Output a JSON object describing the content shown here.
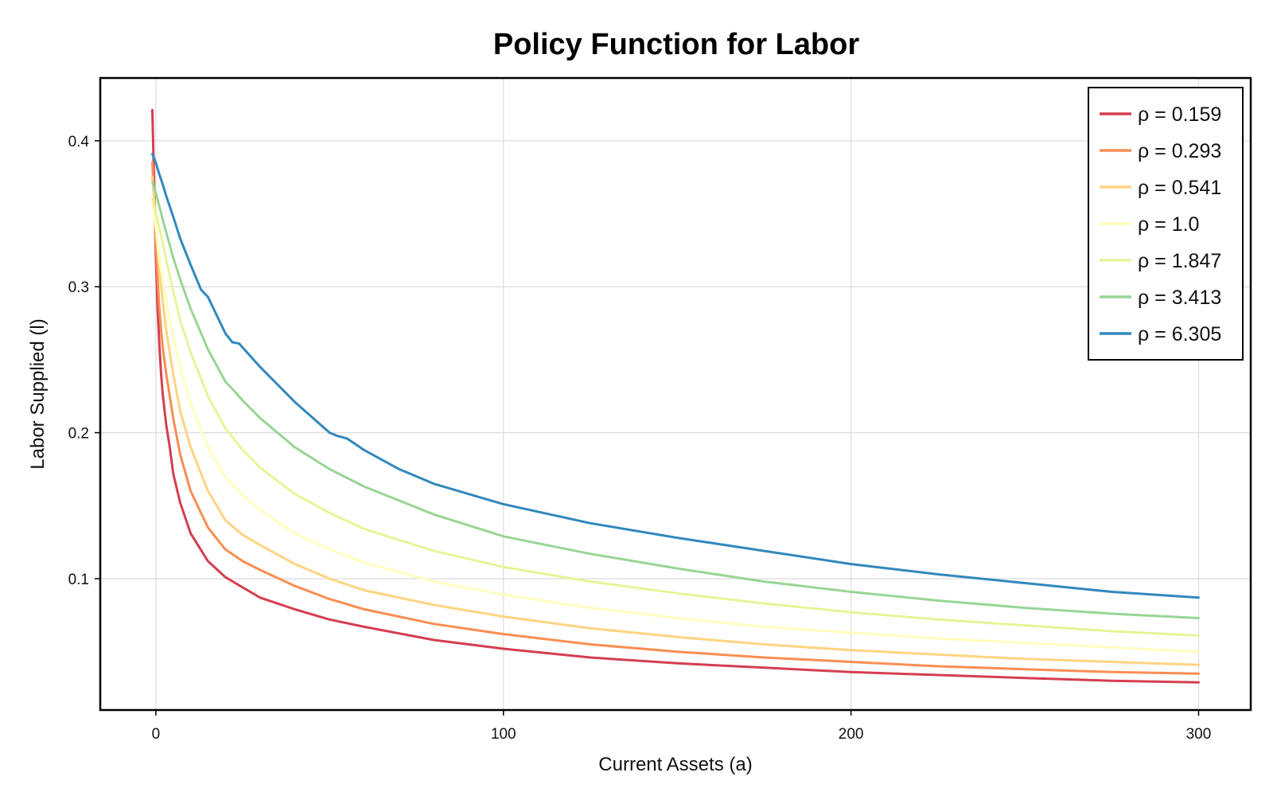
{
  "chart_data": {
    "type": "line",
    "title": "Policy Function for Labor",
    "xlabel": "Current Assets (a)",
    "ylabel": "Labor Supplied (l)",
    "xlim": [
      -16,
      315
    ],
    "ylim": [
      0.01,
      0.443
    ],
    "xticks": [
      0,
      100,
      200,
      300
    ],
    "yticks": [
      0.1,
      0.2,
      0.3,
      0.4
    ],
    "grid": true,
    "legend_position": "top-right",
    "series": [
      {
        "name": "ρ = 0.159",
        "color": "#d53e4f",
        "x": [
          -1,
          -0.5,
          0,
          0.5,
          1,
          1.5,
          2,
          3,
          4,
          5,
          7,
          10,
          15,
          20,
          25,
          30,
          40,
          50,
          60,
          80,
          100,
          125,
          150,
          175,
          200,
          225,
          250,
          275,
          300
        ],
        "y": [
          0.421,
          0.37,
          0.32,
          0.285,
          0.26,
          0.24,
          0.226,
          0.205,
          0.19,
          0.172,
          0.152,
          0.131,
          0.112,
          0.101,
          0.094,
          0.087,
          0.079,
          0.072,
          0.067,
          0.058,
          0.052,
          0.046,
          0.042,
          0.039,
          0.036,
          0.034,
          0.032,
          0.03,
          0.029
        ]
      },
      {
        "name": "ρ = 0.293",
        "color": "#f98e52",
        "x": [
          -1,
          -0.5,
          0,
          0.5,
          1,
          1.5,
          2,
          3,
          4,
          5,
          7,
          10,
          15,
          20,
          25,
          30,
          40,
          50,
          60,
          80,
          100,
          125,
          150,
          175,
          200,
          225,
          250,
          275,
          300
        ],
        "y": [
          0.385,
          0.36,
          0.33,
          0.305,
          0.285,
          0.27,
          0.258,
          0.24,
          0.225,
          0.21,
          0.185,
          0.16,
          0.135,
          0.12,
          0.112,
          0.106,
          0.095,
          0.086,
          0.079,
          0.069,
          0.062,
          0.055,
          0.05,
          0.046,
          0.043,
          0.04,
          0.038,
          0.036,
          0.035
        ]
      },
      {
        "name": "ρ = 0.541",
        "color": "#fed481",
        "x": [
          -1,
          -0.5,
          0,
          0.5,
          1,
          2,
          3,
          5,
          7,
          10,
          15,
          20,
          25,
          30,
          40,
          50,
          60,
          80,
          100,
          125,
          150,
          175,
          200,
          225,
          250,
          275,
          300
        ],
        "y": [
          0.375,
          0.36,
          0.34,
          0.325,
          0.31,
          0.29,
          0.27,
          0.24,
          0.215,
          0.19,
          0.16,
          0.14,
          0.13,
          0.123,
          0.11,
          0.1,
          0.092,
          0.082,
          0.074,
          0.066,
          0.06,
          0.055,
          0.051,
          0.048,
          0.045,
          0.043,
          0.041
        ]
      },
      {
        "name": "ρ = 1.0",
        "color": "#fffebe",
        "x": [
          -1,
          -0.5,
          0,
          1,
          2,
          3,
          5,
          7,
          10,
          15,
          20,
          25,
          30,
          40,
          50,
          60,
          80,
          100,
          125,
          150,
          175,
          200,
          225,
          250,
          275,
          300
        ],
        "y": [
          0.36,
          0.35,
          0.34,
          0.32,
          0.305,
          0.29,
          0.265,
          0.245,
          0.22,
          0.19,
          0.17,
          0.157,
          0.147,
          0.131,
          0.12,
          0.111,
          0.098,
          0.089,
          0.08,
          0.073,
          0.067,
          0.063,
          0.059,
          0.056,
          0.053,
          0.05
        ]
      },
      {
        "name": "ρ = 1.847",
        "color": "#e6f598",
        "x": [
          -1,
          -0.5,
          0,
          1,
          2,
          3,
          5,
          7,
          10,
          15,
          20,
          25,
          30,
          40,
          50,
          60,
          80,
          100,
          125,
          150,
          175,
          200,
          225,
          250,
          275,
          300
        ],
        "y": [
          0.36,
          0.355,
          0.35,
          0.34,
          0.33,
          0.318,
          0.297,
          0.277,
          0.255,
          0.225,
          0.203,
          0.188,
          0.176,
          0.158,
          0.145,
          0.134,
          0.119,
          0.108,
          0.098,
          0.09,
          0.083,
          0.077,
          0.072,
          0.068,
          0.064,
          0.061
        ]
      },
      {
        "name": "ρ = 3.413",
        "color": "#99d594",
        "x": [
          -1,
          -0.5,
          0,
          1,
          2,
          3,
          5,
          7,
          10,
          15,
          20,
          22,
          25,
          30,
          40,
          50,
          60,
          80,
          100,
          125,
          150,
          175,
          200,
          225,
          250,
          275,
          300
        ],
        "y": [
          0.372,
          0.368,
          0.364,
          0.355,
          0.346,
          0.337,
          0.32,
          0.305,
          0.285,
          0.257,
          0.235,
          0.23,
          0.222,
          0.21,
          0.19,
          0.175,
          0.163,
          0.144,
          0.129,
          0.117,
          0.107,
          0.098,
          0.091,
          0.085,
          0.08,
          0.076,
          0.073
        ]
      },
      {
        "name": "ρ = 6.305",
        "color": "#3288bd",
        "x": [
          -1,
          -0.5,
          0,
          1,
          2,
          3,
          5,
          7,
          10,
          13,
          15,
          20,
          22,
          24,
          30,
          40,
          50,
          52,
          55,
          60,
          70,
          80,
          100,
          125,
          150,
          175,
          200,
          225,
          250,
          275,
          300
        ],
        "y": [
          0.391,
          0.388,
          0.385,
          0.377,
          0.37,
          0.362,
          0.348,
          0.333,
          0.315,
          0.298,
          0.293,
          0.268,
          0.262,
          0.261,
          0.245,
          0.221,
          0.2,
          0.198,
          0.196,
          0.188,
          0.175,
          0.165,
          0.151,
          0.138,
          0.128,
          0.119,
          0.11,
          0.103,
          0.097,
          0.091,
          0.087
        ]
      }
    ]
  }
}
